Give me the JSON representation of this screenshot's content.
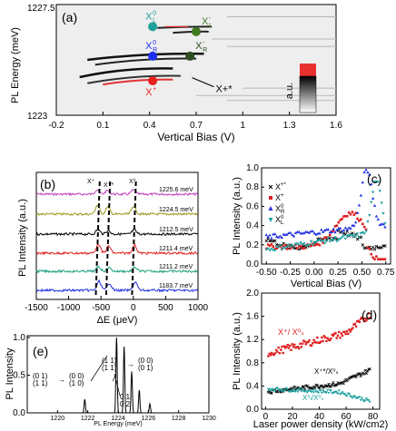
{
  "panel_a": {
    "panel_label": "(a)",
    "xlabel": "Vertical Bias (V)",
    "ylabel": "PL Energy (meV)",
    "xlim": [
      -0.2,
      1.6
    ],
    "ylim": [
      1223,
      1227.5
    ],
    "xticks": [
      "-0.2",
      "0.1",
      "0.4",
      "0.7",
      "1",
      "1.3",
      "1.6"
    ],
    "yticks": [
      "1223",
      "1227.5"
    ],
    "colorbar_label": "a.u.",
    "markers": [
      {
        "name": "XL0",
        "label": "X",
        "sup": "0",
        "sub": "L",
        "color": "#21a09b",
        "x": 0.42,
        "y": 1226.6
      },
      {
        "name": "XL-",
        "label": "X",
        "sup": "-",
        "sub": "L",
        "color": "#3f7a1e",
        "x": 0.7,
        "y": 1226.4
      },
      {
        "name": "XR0",
        "label": "X",
        "sup": "0",
        "sub": "R",
        "color": "#1e2ff0",
        "x": 0.42,
        "y": 1225.4
      },
      {
        "name": "XR-",
        "label": "X",
        "sup": "-",
        "sub": "R",
        "color": "#2e4d20",
        "x": 0.66,
        "y": 1225.4
      },
      {
        "name": "X+",
        "label": "X",
        "sup": "+",
        "sub": "",
        "color": "#e8201e",
        "x": 0.42,
        "y": 1224.4
      },
      {
        "name": "X+*",
        "label": "X",
        "sup": "+*",
        "sub": "",
        "color": "#000000",
        "x": 0.65,
        "y": 1224.6
      }
    ]
  },
  "panel_b": {
    "panel_label": "(b)",
    "xlabel": "ΔE (μeV)",
    "ylabel": "PL Intensity (a.u.)",
    "xlim": [
      -1500,
      1000
    ],
    "xticks": [
      "-1500",
      "-1000",
      "-500",
      "0",
      "500",
      "1000"
    ],
    "peak_labels": [
      "X⁺",
      "X⁺*",
      "X⁰"
    ],
    "series": [
      {
        "name": "1225.6 meV",
        "color": "#c040c0"
      },
      {
        "name": "1224.5 meV",
        "color": "#9a9a20"
      },
      {
        "name": "1212.5 meV",
        "color": "#000000"
      },
      {
        "name": "1211.4 meV",
        "color": "#e02020"
      },
      {
        "name": "1211.2 meV",
        "color": "#20a080"
      },
      {
        "name": "1183.7 meV",
        "color": "#2030e0"
      }
    ]
  },
  "panel_c": {
    "panel_label": "(c)",
    "xlabel": "Vertical Bias (V)",
    "ylabel": "PL Intensity (a.u.)",
    "xlim": [
      -0.55,
      0.8
    ],
    "ylim": [
      0,
      1.0
    ],
    "xticks": [
      "-0.50",
      "-0.25",
      "0.00",
      "0.25",
      "0.50",
      "0.75"
    ],
    "yticks": [
      "0.0",
      "0.2",
      "0.4",
      "0.6",
      "0.8",
      "1.0"
    ],
    "legend": [
      {
        "label": "X",
        "sup": "+*",
        "sub": "",
        "color": "#000000",
        "marker": "x"
      },
      {
        "label": "X",
        "sup": "+",
        "sub": "",
        "color": "#e02020",
        "marker": "square"
      },
      {
        "label": "X",
        "sup": "0",
        "sub": "R",
        "color": "#2030e0",
        "marker": "triangle"
      },
      {
        "label": "X",
        "sup": "0",
        "sub": "L",
        "color": "#20a0a0",
        "marker": "tri-down"
      }
    ]
  },
  "panel_d": {
    "panel_label": "(d)",
    "xlabel": "Laser power density (kW/cm2)",
    "ylabel": "PL Intensity (a.u.)",
    "xlim": [
      -3,
      85
    ],
    "ylim": [
      0,
      2.0
    ],
    "xticks": [
      "0",
      "20",
      "40",
      "60",
      "80"
    ],
    "yticks": [
      "0.0",
      "0.4",
      "0.8",
      "1.2",
      "1.6",
      "2.0"
    ],
    "series_labels": [
      "X⁺/ X⁰ₛ",
      "X⁺*/X⁰ₛ",
      "X⁰ₗ/X⁰ₛ"
    ]
  },
  "panel_e": {
    "panel_label": "(e)",
    "xlabel": "PL Energy (meV)",
    "ylabel": "PL Intensity",
    "xlim": [
      1218,
      1230
    ],
    "ylim": [
      0,
      1.0
    ],
    "xticks": [
      "1220",
      "1222",
      "1224",
      "1226",
      "1228",
      "1230"
    ],
    "yticks": [
      "0.0",
      "0.5",
      "1.0"
    ],
    "peaks": [
      {
        "x": 1221.8,
        "h": 0.18
      },
      {
        "x": 1223.9,
        "h": 1.0
      },
      {
        "x": 1224.4,
        "h": 0.88
      },
      {
        "x": 1224.9,
        "h": 0.55
      },
      {
        "x": 1225.4,
        "h": 0.3
      },
      {
        "x": 1226.1,
        "h": 0.12
      }
    ]
  }
}
